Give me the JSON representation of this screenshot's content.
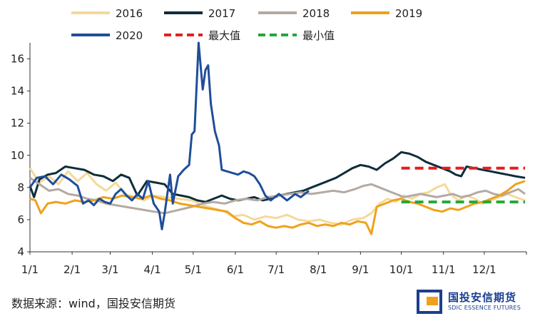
{
  "chart_data": {
    "type": "line",
    "xlabel": "",
    "ylabel": "",
    "ylim": [
      4,
      17
    ],
    "yticks": [
      4,
      6,
      8,
      10,
      12,
      14,
      16
    ],
    "xticks": [
      "1/1",
      "2/1",
      "3/1",
      "4/1",
      "5/1",
      "6/1",
      "7/1",
      "8/1",
      "9/1",
      "10/1",
      "11/1",
      "12/1"
    ],
    "legend_position": "top",
    "series": [
      {
        "name": "2016",
        "color": "#f5d99a",
        "points": [
          [
            1,
            9.2
          ],
          [
            8,
            8.3
          ],
          [
            15,
            8.7
          ],
          [
            22,
            8.2
          ],
          [
            29,
            9.0
          ],
          [
            36,
            8.4
          ],
          [
            43,
            8.9
          ],
          [
            50,
            8.2
          ],
          [
            57,
            7.8
          ],
          [
            64,
            8.3
          ],
          [
            71,
            7.6
          ],
          [
            78,
            7.4
          ],
          [
            85,
            7.2
          ],
          [
            92,
            7.5
          ],
          [
            100,
            7.4
          ],
          [
            110,
            7.3
          ],
          [
            120,
            7.2
          ],
          [
            128,
            6.9
          ],
          [
            136,
            6.7
          ],
          [
            144,
            6.5
          ],
          [
            150,
            6.2
          ],
          [
            158,
            6.3
          ],
          [
            166,
            6.0
          ],
          [
            174,
            6.2
          ],
          [
            182,
            6.1
          ],
          [
            190,
            6.3
          ],
          [
            198,
            6.0
          ],
          [
            206,
            5.9
          ],
          [
            214,
            6.0
          ],
          [
            222,
            5.8
          ],
          [
            230,
            5.7
          ],
          [
            238,
            6.0
          ],
          [
            246,
            6.1
          ],
          [
            252,
            6.4
          ],
          [
            258,
            7.0
          ],
          [
            264,
            7.3
          ],
          [
            270,
            7.1
          ],
          [
            276,
            7.5
          ],
          [
            282,
            7.3
          ],
          [
            288,
            7.6
          ],
          [
            294,
            7.7
          ],
          [
            300,
            8.0
          ],
          [
            306,
            8.2
          ],
          [
            310,
            7.6
          ],
          [
            316,
            7.2
          ],
          [
            322,
            7.5
          ],
          [
            328,
            7.3
          ],
          [
            334,
            7.0
          ],
          [
            340,
            7.2
          ],
          [
            346,
            7.4
          ],
          [
            352,
            7.6
          ],
          [
            358,
            7.4
          ],
          [
            365,
            7.2
          ]
        ]
      },
      {
        "name": "2017",
        "color": "#0f2d3a",
        "points": [
          [
            1,
            8.1
          ],
          [
            4,
            7.4
          ],
          [
            8,
            8.5
          ],
          [
            14,
            8.8
          ],
          [
            20,
            8.9
          ],
          [
            27,
            9.3
          ],
          [
            34,
            9.2
          ],
          [
            41,
            9.1
          ],
          [
            48,
            8.8
          ],
          [
            55,
            8.7
          ],
          [
            62,
            8.4
          ],
          [
            68,
            8.8
          ],
          [
            74,
            8.6
          ],
          [
            80,
            7.5
          ],
          [
            87,
            8.4
          ],
          [
            94,
            8.3
          ],
          [
            100,
            8.2
          ],
          [
            106,
            7.6
          ],
          [
            112,
            7.5
          ],
          [
            118,
            7.4
          ],
          [
            124,
            7.2
          ],
          [
            130,
            7.1
          ],
          [
            136,
            7.3
          ],
          [
            142,
            7.5
          ],
          [
            148,
            7.3
          ],
          [
            154,
            7.2
          ],
          [
            160,
            7.3
          ],
          [
            166,
            7.4
          ],
          [
            172,
            7.2
          ],
          [
            178,
            7.3
          ],
          [
            184,
            7.5
          ],
          [
            190,
            7.6
          ],
          [
            196,
            7.7
          ],
          [
            202,
            7.8
          ],
          [
            208,
            8.0
          ],
          [
            214,
            8.2
          ],
          [
            220,
            8.4
          ],
          [
            226,
            8.6
          ],
          [
            232,
            8.9
          ],
          [
            238,
            9.2
          ],
          [
            244,
            9.4
          ],
          [
            250,
            9.3
          ],
          [
            256,
            9.1
          ],
          [
            262,
            9.5
          ],
          [
            268,
            9.8
          ],
          [
            274,
            10.2
          ],
          [
            280,
            10.1
          ],
          [
            286,
            9.9
          ],
          [
            292,
            9.6
          ],
          [
            298,
            9.4
          ],
          [
            304,
            9.2
          ],
          [
            310,
            9.0
          ],
          [
            314,
            8.8
          ],
          [
            318,
            8.7
          ],
          [
            322,
            9.3
          ],
          [
            328,
            9.2
          ],
          [
            334,
            9.1
          ],
          [
            340,
            9.0
          ],
          [
            346,
            8.9
          ],
          [
            352,
            8.8
          ],
          [
            358,
            8.7
          ],
          [
            365,
            8.6
          ]
        ]
      },
      {
        "name": "2018",
        "color": "#b4aaa2",
        "points": [
          [
            1,
            8.6
          ],
          [
            8,
            8.2
          ],
          [
            15,
            7.8
          ],
          [
            22,
            7.9
          ],
          [
            29,
            7.6
          ],
          [
            36,
            7.5
          ],
          [
            43,
            7.3
          ],
          [
            50,
            7.2
          ],
          [
            57,
            7.0
          ],
          [
            64,
            6.9
          ],
          [
            71,
            6.8
          ],
          [
            78,
            6.7
          ],
          [
            85,
            6.6
          ],
          [
            92,
            6.5
          ],
          [
            100,
            6.4
          ],
          [
            110,
            6.6
          ],
          [
            120,
            6.8
          ],
          [
            128,
            7.0
          ],
          [
            136,
            7.1
          ],
          [
            144,
            7.0
          ],
          [
            152,
            7.2
          ],
          [
            160,
            7.3
          ],
          [
            168,
            7.2
          ],
          [
            176,
            7.4
          ],
          [
            184,
            7.5
          ],
          [
            192,
            7.6
          ],
          [
            200,
            7.7
          ],
          [
            208,
            7.6
          ],
          [
            216,
            7.7
          ],
          [
            224,
            7.8
          ],
          [
            232,
            7.7
          ],
          [
            240,
            7.9
          ],
          [
            246,
            8.1
          ],
          [
            252,
            8.2
          ],
          [
            258,
            8.0
          ],
          [
            264,
            7.8
          ],
          [
            270,
            7.6
          ],
          [
            276,
            7.4
          ],
          [
            282,
            7.5
          ],
          [
            288,
            7.6
          ],
          [
            294,
            7.5
          ],
          [
            300,
            7.4
          ],
          [
            306,
            7.5
          ],
          [
            312,
            7.6
          ],
          [
            318,
            7.4
          ],
          [
            324,
            7.5
          ],
          [
            330,
            7.7
          ],
          [
            336,
            7.8
          ],
          [
            342,
            7.6
          ],
          [
            348,
            7.5
          ],
          [
            354,
            7.7
          ],
          [
            360,
            7.9
          ],
          [
            365,
            7.6
          ]
        ]
      },
      {
        "name": "2019",
        "color": "#f0a11c",
        "points": [
          [
            1,
            7.3
          ],
          [
            5,
            7.2
          ],
          [
            9,
            6.4
          ],
          [
            14,
            7.0
          ],
          [
            20,
            7.1
          ],
          [
            27,
            7.0
          ],
          [
            34,
            7.2
          ],
          [
            41,
            7.1
          ],
          [
            48,
            7.2
          ],
          [
            55,
            7.4
          ],
          [
            62,
            7.3
          ],
          [
            69,
            7.5
          ],
          [
            76,
            7.4
          ],
          [
            83,
            7.3
          ],
          [
            90,
            7.5
          ],
          [
            97,
            7.3
          ],
          [
            104,
            7.2
          ],
          [
            111,
            7.0
          ],
          [
            118,
            6.9
          ],
          [
            125,
            6.8
          ],
          [
            132,
            6.7
          ],
          [
            139,
            6.6
          ],
          [
            146,
            6.5
          ],
          [
            152,
            6.1
          ],
          [
            158,
            5.8
          ],
          [
            164,
            5.7
          ],
          [
            170,
            5.9
          ],
          [
            176,
            5.6
          ],
          [
            182,
            5.5
          ],
          [
            188,
            5.6
          ],
          [
            194,
            5.5
          ],
          [
            200,
            5.7
          ],
          [
            206,
            5.8
          ],
          [
            212,
            5.6
          ],
          [
            218,
            5.7
          ],
          [
            224,
            5.6
          ],
          [
            230,
            5.8
          ],
          [
            236,
            5.7
          ],
          [
            242,
            5.9
          ],
          [
            248,
            5.8
          ],
          [
            252,
            5.1
          ],
          [
            256,
            6.8
          ],
          [
            262,
            7.0
          ],
          [
            268,
            7.2
          ],
          [
            274,
            7.3
          ],
          [
            280,
            7.1
          ],
          [
            286,
            7.0
          ],
          [
            292,
            6.8
          ],
          [
            298,
            6.6
          ],
          [
            304,
            6.5
          ],
          [
            310,
            6.7
          ],
          [
            316,
            6.6
          ],
          [
            322,
            6.8
          ],
          [
            328,
            7.0
          ],
          [
            334,
            7.1
          ],
          [
            340,
            7.3
          ],
          [
            346,
            7.5
          ],
          [
            352,
            7.8
          ],
          [
            358,
            8.2
          ],
          [
            365,
            8.4
          ]
        ]
      },
      {
        "name": "2020",
        "color": "#1f4e9a",
        "points": [
          [
            1,
            8.0
          ],
          [
            6,
            8.6
          ],
          [
            12,
            8.7
          ],
          [
            18,
            8.2
          ],
          [
            24,
            8.8
          ],
          [
            30,
            8.5
          ],
          [
            36,
            8.1
          ],
          [
            40,
            7.0
          ],
          [
            44,
            7.2
          ],
          [
            48,
            6.9
          ],
          [
            52,
            7.3
          ],
          [
            56,
            7.1
          ],
          [
            60,
            7.0
          ],
          [
            64,
            7.6
          ],
          [
            68,
            7.9
          ],
          [
            72,
            7.5
          ],
          [
            76,
            7.2
          ],
          [
            80,
            7.6
          ],
          [
            84,
            7.3
          ],
          [
            88,
            8.4
          ],
          [
            92,
            7.0
          ],
          [
            96,
            6.5
          ],
          [
            98,
            5.4
          ],
          [
            100,
            6.4
          ],
          [
            104,
            8.8
          ],
          [
            106,
            7.0
          ],
          [
            110,
            8.7
          ],
          [
            114,
            9.1
          ],
          [
            118,
            9.4
          ],
          [
            120,
            11.3
          ],
          [
            122,
            11.5
          ],
          [
            125,
            17.0
          ],
          [
            128,
            14.1
          ],
          [
            130,
            15.3
          ],
          [
            132,
            15.6
          ],
          [
            134,
            13.2
          ],
          [
            137,
            11.5
          ],
          [
            140,
            10.6
          ],
          [
            142,
            9.1
          ],
          [
            146,
            9.0
          ],
          [
            150,
            8.9
          ],
          [
            154,
            8.8
          ],
          [
            158,
            9.0
          ],
          [
            162,
            8.9
          ],
          [
            166,
            8.7
          ],
          [
            170,
            8.2
          ],
          [
            174,
            7.5
          ],
          [
            178,
            7.2
          ],
          [
            184,
            7.6
          ],
          [
            190,
            7.2
          ],
          [
            196,
            7.6
          ],
          [
            200,
            7.4
          ],
          [
            206,
            7.8
          ]
        ]
      },
      {
        "name": "最大值",
        "color": "#e61e1e",
        "dashed": true,
        "points": [
          [
            274,
            9.2
          ],
          [
            365,
            9.2
          ]
        ]
      },
      {
        "name": "最小值",
        "color": "#23a83a",
        "dashed": true,
        "points": [
          [
            274,
            7.1
          ],
          [
            365,
            7.1
          ]
        ]
      }
    ]
  },
  "footer": {
    "source": "数据来源：wind，国投安信期货",
    "logo_cn": "国投安信期货",
    "logo_en": "SDIC ESSENCE FUTURES"
  }
}
